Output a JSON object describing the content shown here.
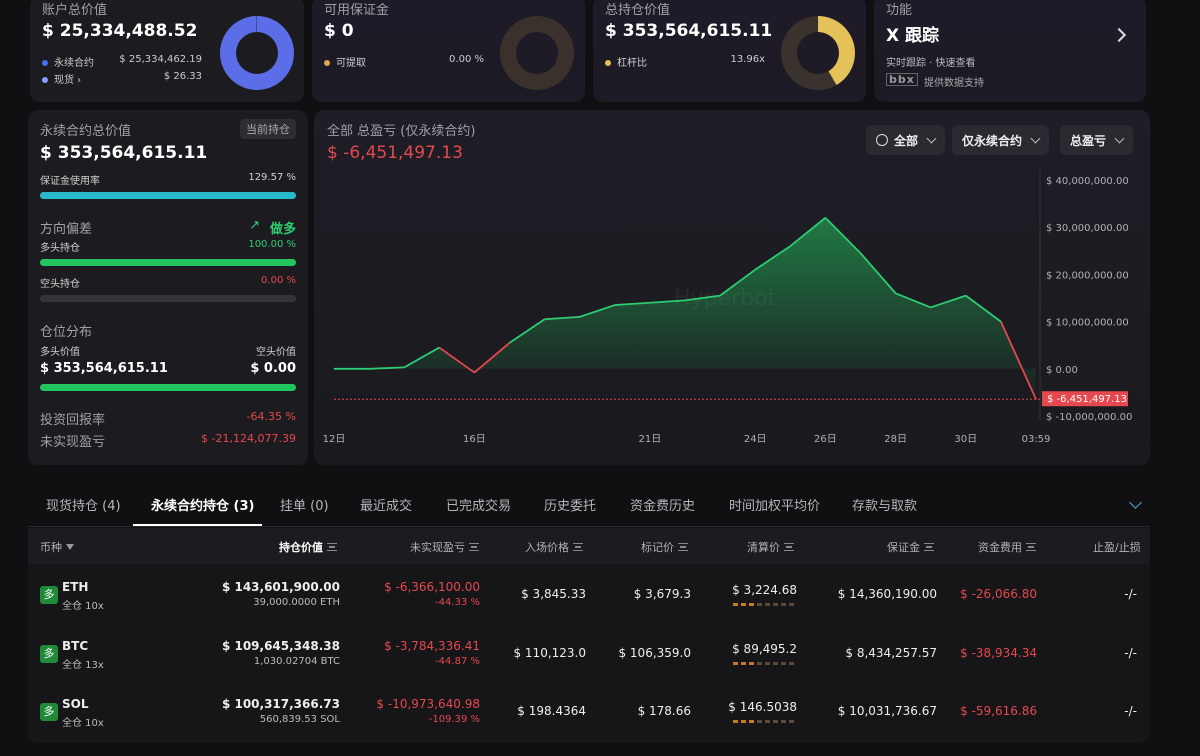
{
  "top_cards": {
    "account": {
      "label": "账户总价值",
      "value": "$ 25,334,488.52",
      "rows": [
        {
          "name": "永续合约",
          "value": "$ 25,334,462.19",
          "color": "#4a6cf7"
        },
        {
          "name": "现货 ›",
          "value": "$ 26.33",
          "color": "#8a9cff"
        }
      ]
    },
    "margin": {
      "label": "可用保证金",
      "value": "$ 0",
      "row_name": "可提取",
      "row_value": "0.00 %",
      "color": "#e0a84a"
    },
    "holdings": {
      "label": "总持仓价值",
      "value": "$ 353,564,615.11",
      "row_name": "杠杆比",
      "row_value": "13.96x",
      "color": "#e5c15a"
    },
    "feature": {
      "label": "功能",
      "title": "X 跟踪",
      "desc": "实时跟踪 · 快速查看",
      "provider": "提供数据支持",
      "logo": "bbx"
    }
  },
  "left_panel": {
    "perp_label": "永续合约总价值",
    "current_label": "当前持仓",
    "perp_value": "$ 353,564,615.11",
    "margin_usage_label": "保证金使用率",
    "margin_usage_value": "129.57 %",
    "margin_usage_pct": 100,
    "bias_label": "方向偏差",
    "bias_value": "做多",
    "long_label": "多头持仓",
    "long_value": "100.00 %",
    "long_pct": 100,
    "short_label": "空头持仓",
    "short_value": "0.00 %",
    "short_pct": 0,
    "dist_label": "仓位分布",
    "long_val_label": "多头价值",
    "short_val_label": "空头价值",
    "long_val": "$ 353,564,615.11",
    "short_val": "$ 0.00",
    "roi_label": "投资回报率",
    "roi_value": "-64.35 %",
    "upnl_label": "未实现盈亏",
    "upnl_value": "$ -21,124,077.39"
  },
  "chart_panel": {
    "title": "全部 总盈亏 (仅永续合约)",
    "value": "$ -6,451,497.13",
    "dropdowns": [
      "全部",
      "仅永续合约",
      "总盈亏"
    ],
    "watermark": "Hyperbot"
  },
  "chart_data": {
    "type": "area",
    "x": [
      "12日",
      "13日",
      "14日",
      "15日",
      "16日",
      "17日",
      "18日",
      "19日",
      "20日",
      "21日",
      "22日",
      "23日",
      "24日",
      "25日",
      "26日",
      "27日",
      "28日",
      "29日",
      "30日",
      "31日",
      "03:59"
    ],
    "xticks": [
      "12日",
      "16日",
      "21日",
      "24日",
      "26日",
      "28日",
      "30日",
      "03:59"
    ],
    "y": [
      0,
      0,
      0.3,
      4.5,
      -0.8,
      5.5,
      10.5,
      11,
      13.5,
      14,
      14.5,
      15.5,
      21,
      26,
      32,
      24.5,
      16,
      13,
      15.5,
      10,
      -6.45
    ],
    "yticks": [
      "$ 40,000,000.00",
      "$ 30,000,000.00",
      "$ 20,000,000.00",
      "$ 10,000,000.00",
      "$ 0.00",
      "$ -10,000,000.00"
    ],
    "ylim": [
      -10000000,
      40000000
    ],
    "last_label": "$ -6,451,497.13",
    "colors": {
      "positive": "#2ecc71",
      "negative": "#e5484d"
    }
  },
  "tabs": [
    "现货持仓 (4)",
    "永续合约持仓 (3)",
    "挂单 (0)",
    "最近成交",
    "已完成交易",
    "历史委托",
    "资金费历史",
    "时间加权平均价",
    "存款与取款"
  ],
  "table": {
    "headers": [
      "币种",
      "持仓价值",
      "未实现盈亏",
      "入场价格",
      "标记价",
      "清算价",
      "保证金",
      "资金费用",
      "止盈/止损"
    ],
    "rows": [
      {
        "coin": "ETH",
        "mode": "全仓 10x",
        "value": "$ 143,601,900.00",
        "qty": "39,000.0000 ETH",
        "pnl": "$ -6,366,100.00",
        "pnl_pct": "-44.33 %",
        "entry": "$ 3,845.33",
        "mark": "$ 3,679.3",
        "liq": "$ 3,224.68",
        "margin": "$ 14,360,190.00",
        "funding": "$ -26,066.80",
        "tpsl": "-/-"
      },
      {
        "coin": "BTC",
        "mode": "全仓 13x",
        "value": "$ 109,645,348.38",
        "qty": "1,030.02704 BTC",
        "pnl": "$ -3,784,336.41",
        "pnl_pct": "-44.87 %",
        "entry": "$ 110,123.0",
        "mark": "$ 106,359.0",
        "liq": "$ 89,495.2",
        "margin": "$ 8,434,257.57",
        "funding": "$ -38,934.34",
        "tpsl": "-/-"
      },
      {
        "coin": "SOL",
        "mode": "全仓 10x",
        "value": "$ 100,317,366.73",
        "qty": "560,839.53 SOL",
        "pnl": "$ -10,973,640.98",
        "pnl_pct": "-109.39 %",
        "entry": "$ 198.4364",
        "mark": "$ 178.66",
        "liq": "$ 146.5038",
        "margin": "$ 10,031,736.67",
        "funding": "$ -59,616.86",
        "tpsl": "-/-"
      }
    ],
    "coin_icon": "多"
  }
}
